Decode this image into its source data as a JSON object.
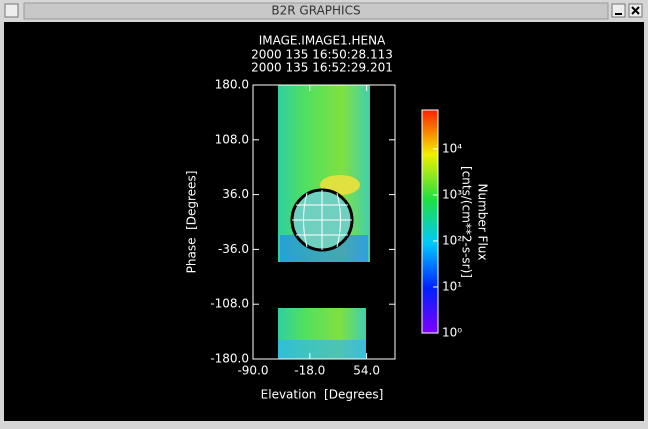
{
  "window": {
    "title": "B2R GRAPHICS"
  },
  "chart_data": {
    "type": "image",
    "title": "IMAGE.IMAGE1.HENA",
    "subtitle": [
      "2000 135 16:50:28.113",
      "2000 135 16:52:29.201"
    ],
    "x_label": "Elevation  [Degrees]",
    "y_label": "Phase  [Degrees]",
    "xlim": [
      -90,
      90
    ],
    "xticks": [
      {
        "value": -90,
        "label": "-90.0"
      },
      {
        "value": -18,
        "label": "-18.0"
      },
      {
        "value": 54,
        "label": "54.0"
      }
    ],
    "ylim": [
      -180,
      180
    ],
    "yticks": [
      {
        "value": 180,
        "label": "180.0"
      },
      {
        "value": 108,
        "label": "108.0"
      },
      {
        "value": 36,
        "label": "36.0"
      },
      {
        "value": -36,
        "label": "-36.0"
      },
      {
        "value": -108,
        "label": "-108.0"
      },
      {
        "value": -180,
        "label": "-180.0"
      }
    ],
    "colorbar": {
      "label": [
        "Number Flux",
        "[cnts/(cm**2-s-sr)]"
      ],
      "log_scale": true,
      "clim": [
        1,
        70000
      ],
      "ticks": [
        {
          "value": 1,
          "label": "10⁰"
        },
        {
          "value": 10,
          "label": "10¹"
        },
        {
          "value": 100,
          "label": "10²"
        },
        {
          "value": 1000,
          "label": "10³"
        },
        {
          "value": 10000,
          "label": "10⁴"
        }
      ]
    }
  }
}
